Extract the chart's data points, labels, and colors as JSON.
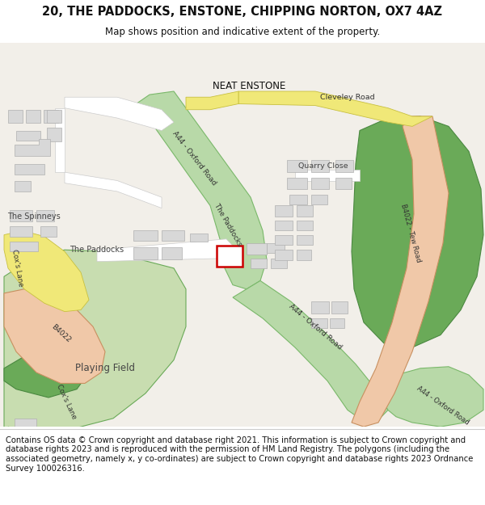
{
  "title": "20, THE PADDOCKS, ENSTONE, CHIPPING NORTON, OX7 4AZ",
  "subtitle": "Map shows position and indicative extent of the property.",
  "footer_lines": [
    "Contains OS data © Crown copyright and database right 2021. This information is subject to Crown copyright and database rights 2023 and is reproduced with the permission of",
    "HM Land Registry. The polygons (including the associated geometry, namely x, y co-ordinates) are subject to Crown copyright and database rights 2023 Ordnance Survey",
    "100026316."
  ],
  "map_bg": "#f2efe9",
  "road_green": "#b8d9a8",
  "road_green_edge": "#7ab86a",
  "road_orange": "#f0c8a8",
  "road_orange_edge": "#c89060",
  "road_yellow": "#f0e878",
  "road_yellow_edge": "#c8c040",
  "building_fill": "#d8d8d8",
  "building_edge": "#b0b0b0",
  "grass_light": "#c8ddb0",
  "grass_dark": "#6aaa58",
  "plot_edge": "#cc0000",
  "plot_lw": 1.8,
  "title_fontsize": 10.5,
  "subtitle_fontsize": 8.5,
  "footer_fontsize": 7.2,
  "label_fontsize": 7.0,
  "road_label_fontsize": 6.5
}
